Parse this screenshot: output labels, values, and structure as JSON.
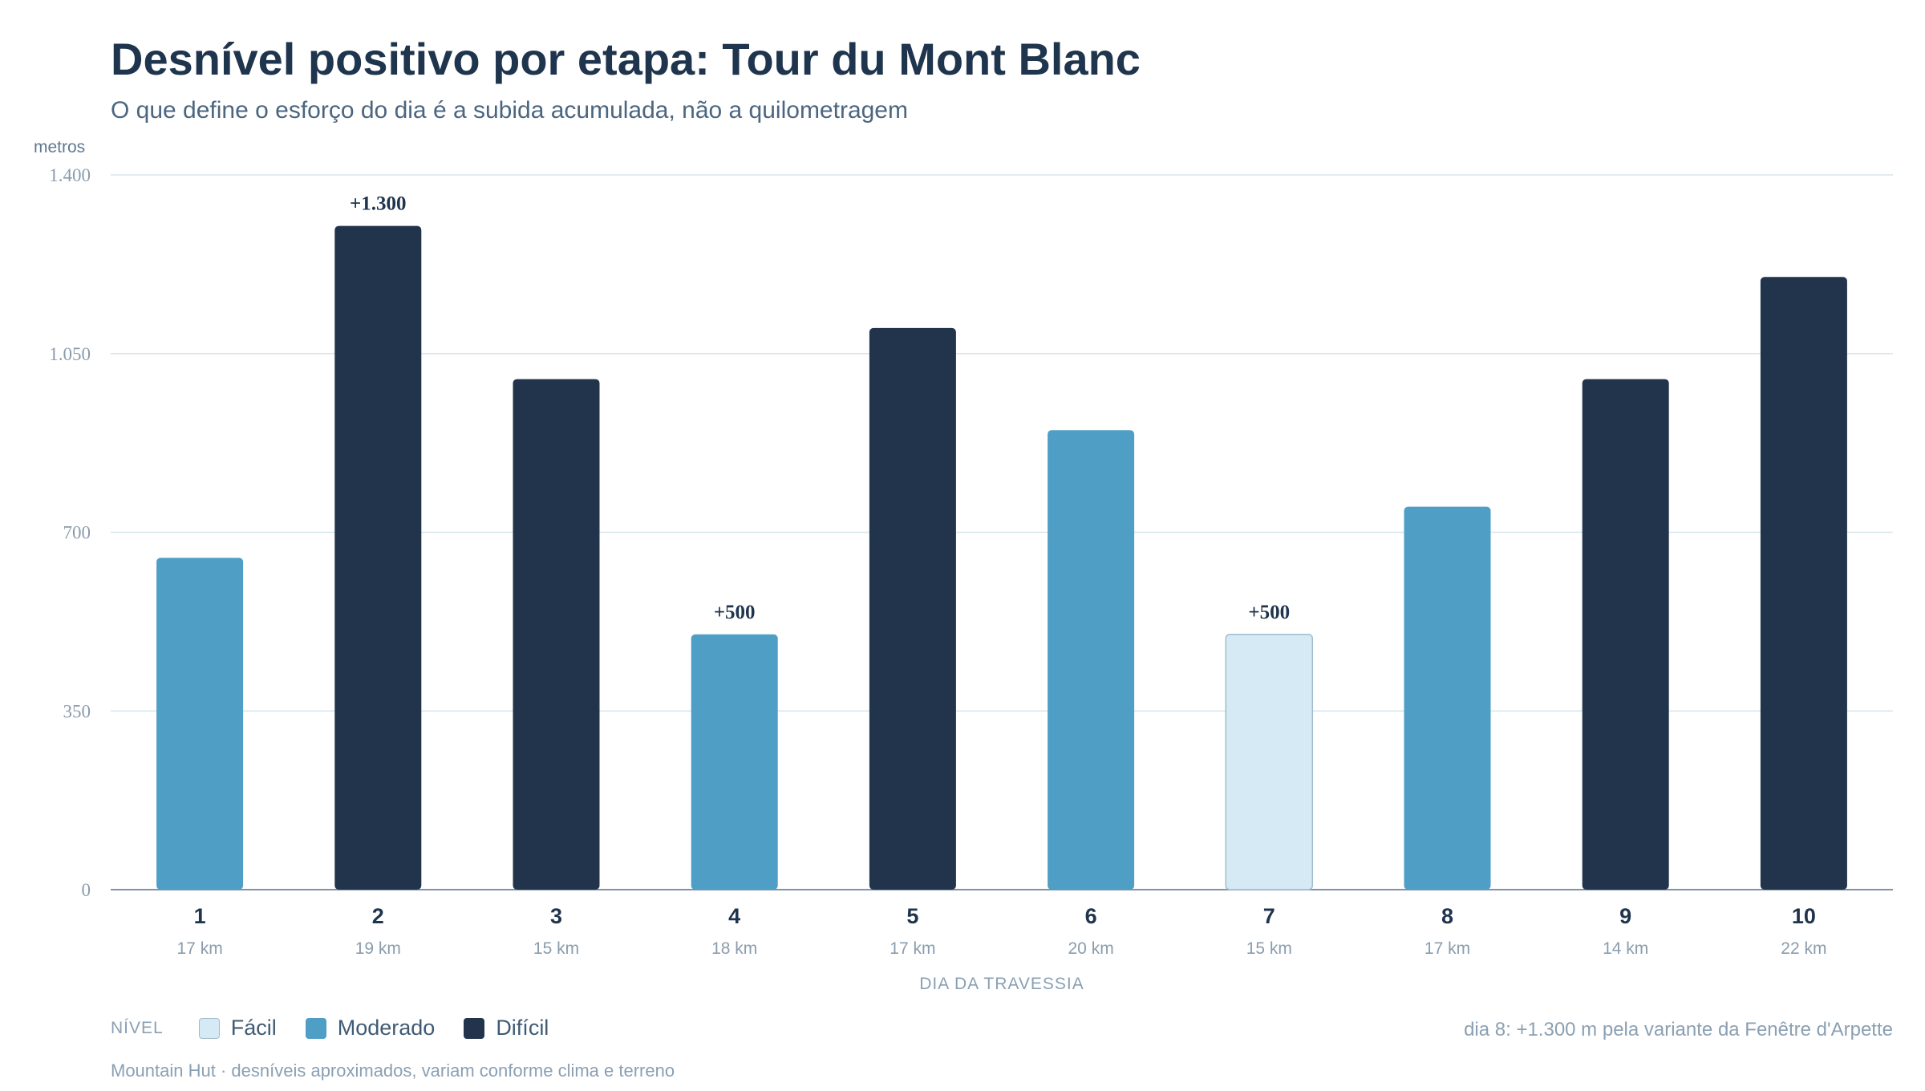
{
  "title": "Desnível positivo por etapa: Tour du Mont Blanc",
  "subtitle": "O que define o esforço do dia é a subida acumulada, não a quilometragem",
  "legend": {
    "title": "NÍVEL",
    "items": [
      {
        "label": "Fácil",
        "color": "#d6eaf5"
      },
      {
        "label": "Moderado",
        "color": "#4f9ec6"
      },
      {
        "label": "Difícil",
        "color": "#21344b"
      }
    ]
  },
  "note": "dia 8: +1.300 m pela variante da Fenêtre d'Arpette",
  "source": "Mountain Hut · desníveis aproximados, variam conforme clima e terreno",
  "chart_data": {
    "type": "bar",
    "ylabel": "metros",
    "xlabel": "DIA DA TRAVESSIA",
    "ylim": [
      0,
      1400
    ],
    "yticks": [
      0,
      350,
      700,
      1050,
      1400
    ],
    "ytick_labels": [
      "0",
      "350",
      "700",
      "1.050",
      "1.400"
    ],
    "grid": true,
    "legend_position": "bottom-left",
    "categories": [
      "1",
      "2",
      "3",
      "4",
      "5",
      "6",
      "7",
      "8",
      "9",
      "10"
    ],
    "distances": [
      "17 km",
      "19 km",
      "15 km",
      "18 km",
      "17 km",
      "20 km",
      "15 km",
      "17 km",
      "14 km",
      "22 km"
    ],
    "values": [
      650,
      1300,
      1000,
      500,
      1100,
      900,
      500,
      750,
      1000,
      1200
    ],
    "levels": [
      "Moderado",
      "Difícil",
      "Difícil",
      "Moderado",
      "Difícil",
      "Moderado",
      "Fácil",
      "Moderado",
      "Difícil",
      "Difícil"
    ],
    "annotations": [
      {
        "index": 1,
        "text": "+1.300"
      },
      {
        "index": 3,
        "text": "+500"
      },
      {
        "index": 6,
        "text": "+500"
      }
    ]
  }
}
